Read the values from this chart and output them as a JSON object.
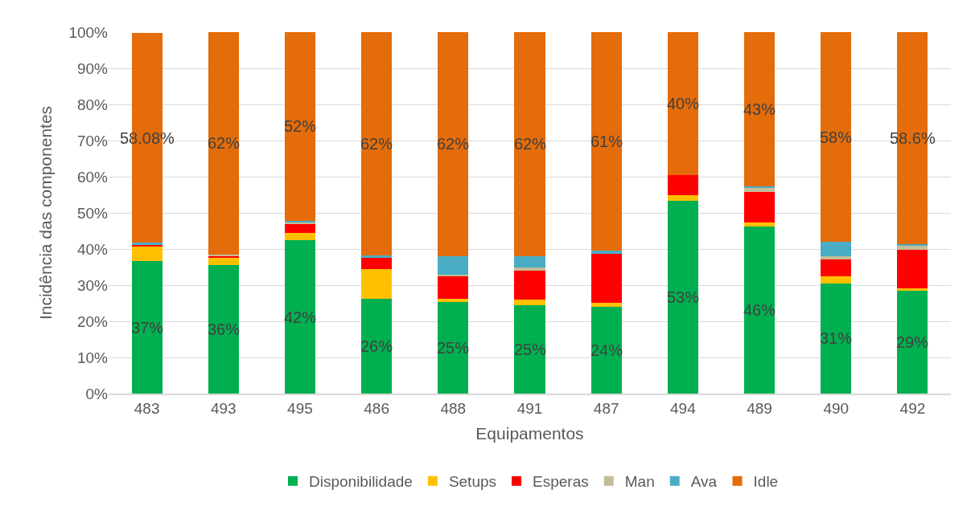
{
  "chart_data": {
    "type": "bar",
    "stacked": true,
    "xlabel": "Equipamentos",
    "ylabel": "Incidência das componentes",
    "categories": [
      "483",
      "493",
      "495",
      "486",
      "488",
      "491",
      "487",
      "494",
      "489",
      "490",
      "492"
    ],
    "ylim": [
      0,
      100
    ],
    "yticks": [
      {
        "value": 0,
        "label": "0%"
      },
      {
        "value": 10,
        "label": "10%"
      },
      {
        "value": 20,
        "label": "20%"
      },
      {
        "value": 30,
        "label": "30%"
      },
      {
        "value": 40,
        "label": "40%"
      },
      {
        "value": 50,
        "label": "50%"
      },
      {
        "value": 60,
        "label": "60%"
      },
      {
        "value": 70,
        "label": "70%"
      },
      {
        "value": 80,
        "label": "80%"
      },
      {
        "value": 90,
        "label": "90%"
      },
      {
        "value": 100,
        "label": "100%"
      }
    ],
    "grid": "y",
    "legend": "bottom",
    "series": [
      {
        "name": "Disponibilidade",
        "color": "#00b050",
        "values": [
          36.6,
          35.6,
          42.4,
          26.3,
          25.3,
          24.5,
          24.1,
          53.4,
          46.2,
          30.5,
          28.5
        ],
        "value_labels": [
          "37%",
          "36%",
          "42%",
          "26%",
          "25%",
          "25%",
          "24%",
          "53%",
          "46%",
          "31%",
          "29%"
        ]
      },
      {
        "name": "Setups",
        "color": "#ffc000",
        "values": [
          4.1,
          2.1,
          2.0,
          8.2,
          1.0,
          1.5,
          1.0,
          1.6,
          1.2,
          2.0,
          0.7
        ]
      },
      {
        "name": "Esperas",
        "color": "#ff0000",
        "values": [
          0.5,
          0.4,
          2.6,
          3.0,
          6.2,
          8.1,
          13.5,
          5.4,
          8.4,
          4.6,
          10.5
        ]
      },
      {
        "name": "Man",
        "color": "#c4bd97",
        "values": [
          null,
          0.4,
          0.3,
          0.0,
          0.3,
          0.9,
          0.0,
          0.0,
          1.2,
          1.0,
          1.4
        ]
      },
      {
        "name": "Ava",
        "color": "#4bacc6",
        "values": [
          0.5,
          0.0,
          0.5,
          0.8,
          5.3,
          3.1,
          0.9,
          0.0,
          0.3,
          3.8,
          0.3
        ]
      },
      {
        "name": "Idle",
        "color": "#e46c0a",
        "values": [
          58.08,
          61.5,
          52.2,
          61.7,
          61.9,
          61.9,
          60.5,
          39.6,
          42.7,
          58.1,
          58.6
        ],
        "value_labels": [
          "58.08%",
          "62%",
          "52%",
          "62%",
          "62%",
          "62%",
          "61%",
          "40%",
          "43%",
          "58%",
          "58.6%"
        ]
      }
    ]
  }
}
